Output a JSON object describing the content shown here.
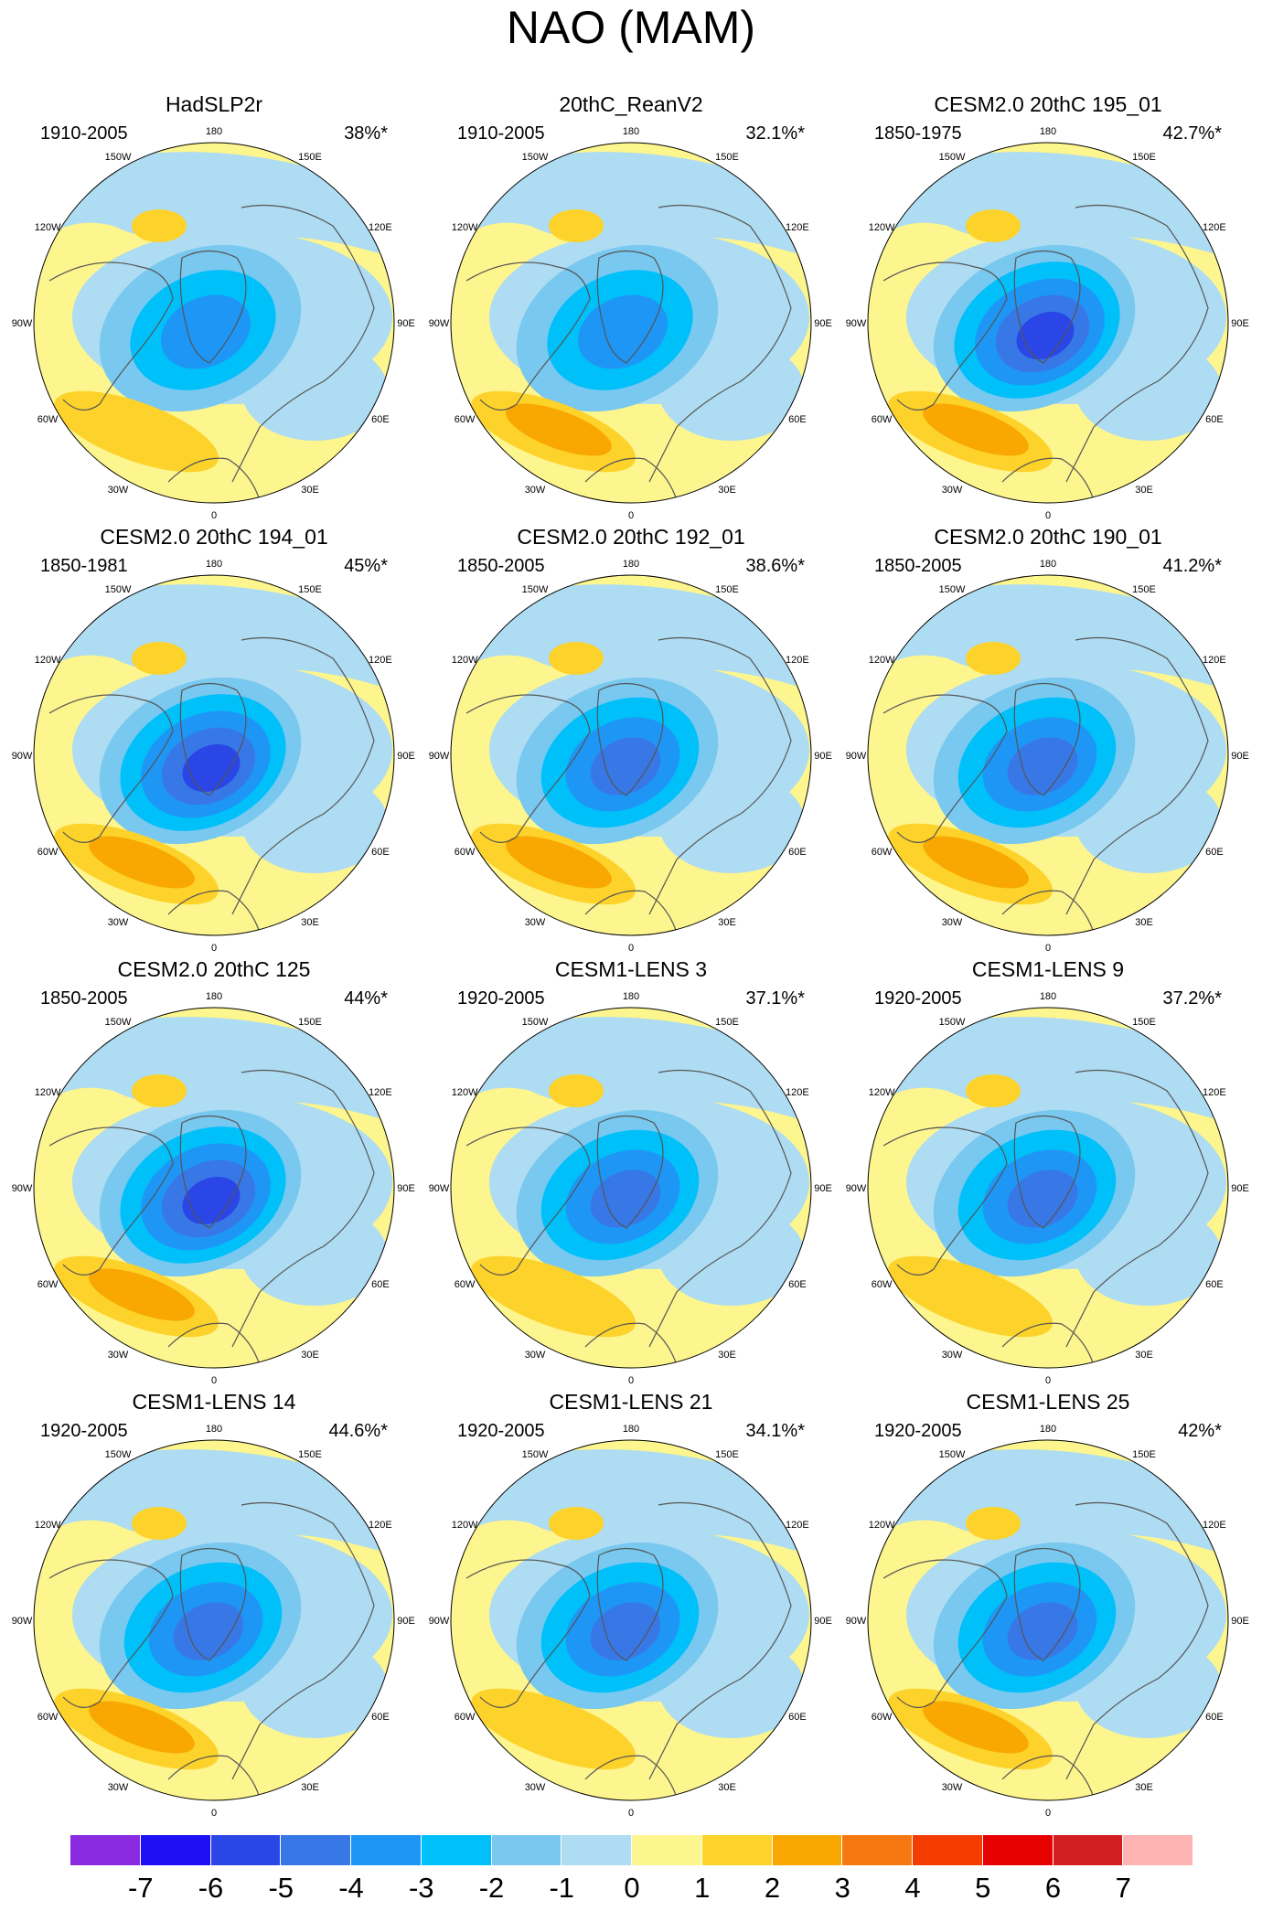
{
  "title": "NAO (MAM)",
  "colors": {
    "ocean_blue": "#aedcf2",
    "land_yellow": "#fdf58e",
    "coast": "#555555"
  },
  "panels": [
    {
      "title": "HadSLP2r",
      "years": "1910-2005",
      "pct": "38%*",
      "neg_strength": 3,
      "pos_strength": 1
    },
    {
      "title": "20thC_ReanV2",
      "years": "1910-2005",
      "pct": "32.1%*",
      "neg_strength": 3,
      "pos_strength": 2
    },
    {
      "title": "CESM2.0 20thC 195_01",
      "years": "1850-1975",
      "pct": "42.7%*",
      "neg_strength": 5,
      "pos_strength": 2
    },
    {
      "title": "CESM2.0 20thC 194_01",
      "years": "1850-1981",
      "pct": "45%*",
      "neg_strength": 5,
      "pos_strength": 2
    },
    {
      "title": "CESM2.0 20thC 192_01",
      "years": "1850-2005",
      "pct": "38.6%*",
      "neg_strength": 4,
      "pos_strength": 2
    },
    {
      "title": "CESM2.0 20thC 190_01",
      "years": "1850-2005",
      "pct": "41.2%*",
      "neg_strength": 4,
      "pos_strength": 2
    },
    {
      "title": "CESM2.0 20thC 125",
      "years": "1850-2005",
      "pct": "44%*",
      "neg_strength": 5,
      "pos_strength": 2
    },
    {
      "title": "CESM1-LENS 3",
      "years": "1920-2005",
      "pct": "37.1%*",
      "neg_strength": 4,
      "pos_strength": 1
    },
    {
      "title": "CESM1-LENS 9",
      "years": "1920-2005",
      "pct": "37.2%*",
      "neg_strength": 4,
      "pos_strength": 1
    },
    {
      "title": "CESM1-LENS 14",
      "years": "1920-2005",
      "pct": "44.6%*",
      "neg_strength": 4,
      "pos_strength": 2
    },
    {
      "title": "CESM1-LENS 21",
      "years": "1920-2005",
      "pct": "34.1%*",
      "neg_strength": 4,
      "pos_strength": 1
    },
    {
      "title": "CESM1-LENS 25",
      "years": "1920-2005",
      "pct": "42%*",
      "neg_strength": 4,
      "pos_strength": 2
    }
  ],
  "longitude_labels": [
    "180",
    "150E",
    "120E",
    "90E",
    "60E",
    "30E",
    "0",
    "30W",
    "60W",
    "90W",
    "120W",
    "150W"
  ],
  "colorbar": {
    "colors": [
      "#8a2be2",
      "#1e10f5",
      "#2a46e6",
      "#3878e6",
      "#1e96f5",
      "#00c0fa",
      "#78c8f0",
      "#aedcf2",
      "#fdf58e",
      "#fdd22a",
      "#f8a800",
      "#f57810",
      "#f53c00",
      "#e60000",
      "#d21e1e",
      "#ffb4b4"
    ],
    "labels": [
      "-7",
      "-6",
      "-5",
      "-4",
      "-3",
      "-2",
      "-1",
      "0",
      "1",
      "2",
      "3",
      "4",
      "5",
      "6",
      "7"
    ]
  }
}
